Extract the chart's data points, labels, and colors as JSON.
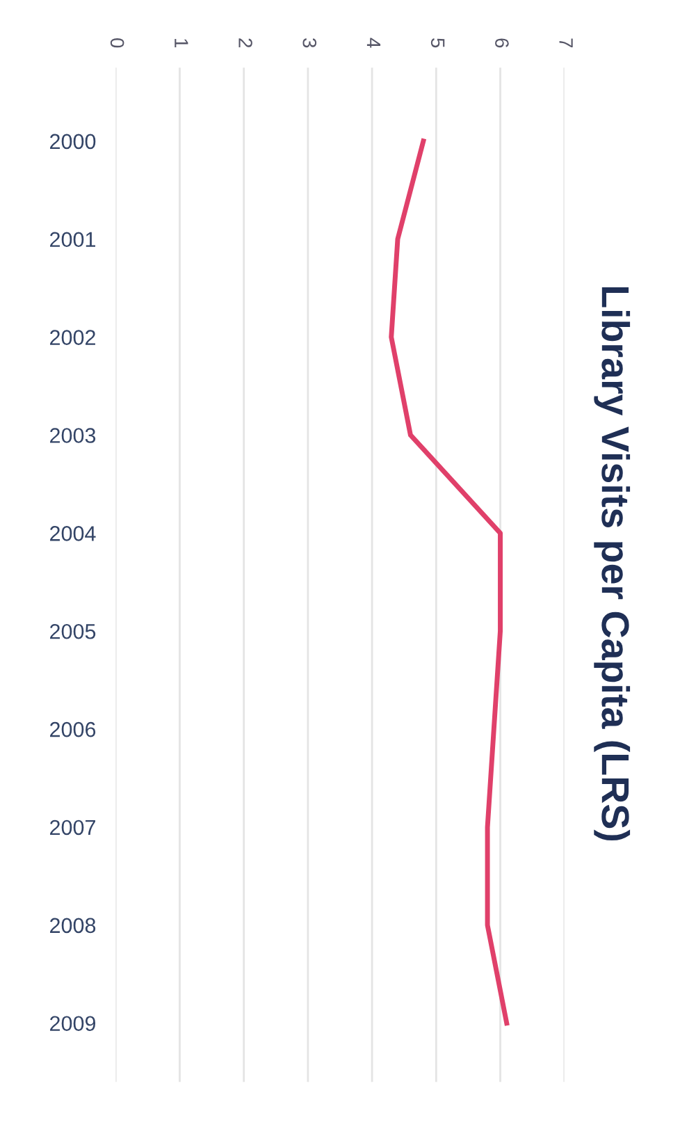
{
  "chart_data": {
    "type": "line",
    "orientation": "horizontal",
    "title": "Library Visits per Capita (LRS)",
    "categories": [
      "2000",
      "2001",
      "2002",
      "2003",
      "2004",
      "2005",
      "2006",
      "2007",
      "2008",
      "2009"
    ],
    "series": [
      {
        "color": "#e0406a",
        "values": [
          4.8,
          4.4,
          4.3,
          4.6,
          6.0,
          6.0,
          5.9,
          5.8,
          5.8,
          6.1
        ]
      }
    ],
    "xlim": [
      0,
      7
    ],
    "xticks": [
      0,
      1,
      2,
      3,
      4,
      5,
      6,
      7
    ],
    "grid": "x",
    "marker": "none",
    "line_style": "solid"
  }
}
